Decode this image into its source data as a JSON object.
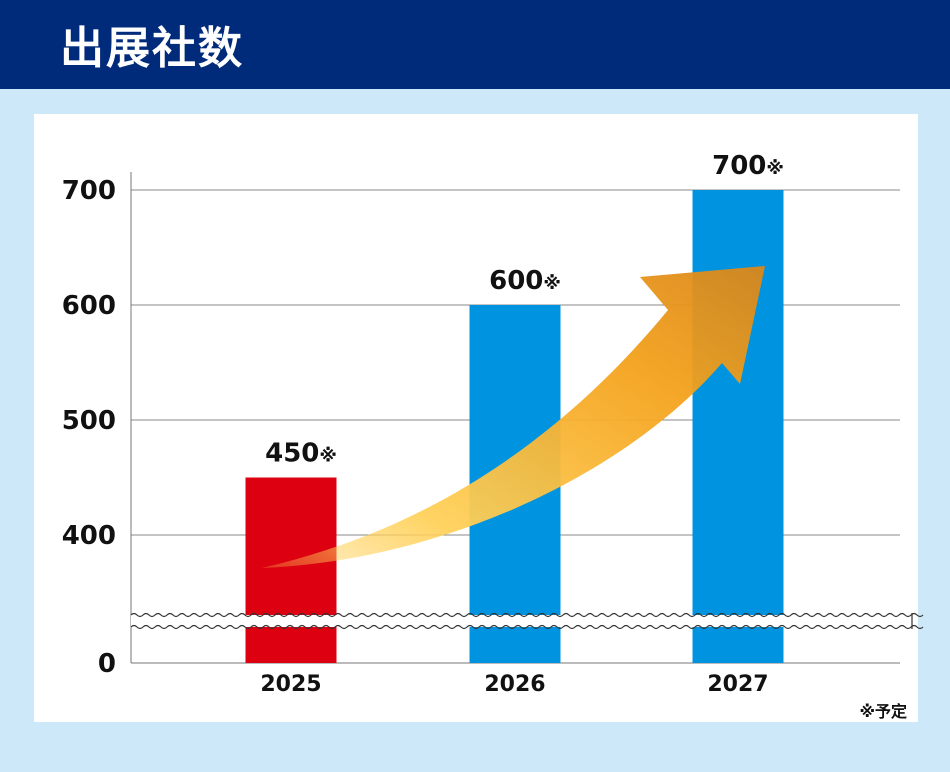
{
  "header": {
    "title": "出展社数"
  },
  "chart_data": {
    "type": "bar",
    "categories": [
      "2025",
      "2026",
      "2027"
    ],
    "values": [
      450,
      600,
      700
    ],
    "value_labels": [
      "450",
      "600",
      "700"
    ],
    "value_suffix": "※",
    "bar_colors": [
      "#dc0010",
      "#0094e0",
      "#0094e0"
    ],
    "y_ticks": [
      0,
      400,
      500,
      600,
      700
    ],
    "ylim": [
      0,
      700
    ],
    "axis_break": true,
    "grid": true,
    "trend_arrow_colors": [
      "#ffd15a",
      "#f4a21c",
      "#d9861a"
    ]
  },
  "footnote": "※予定"
}
